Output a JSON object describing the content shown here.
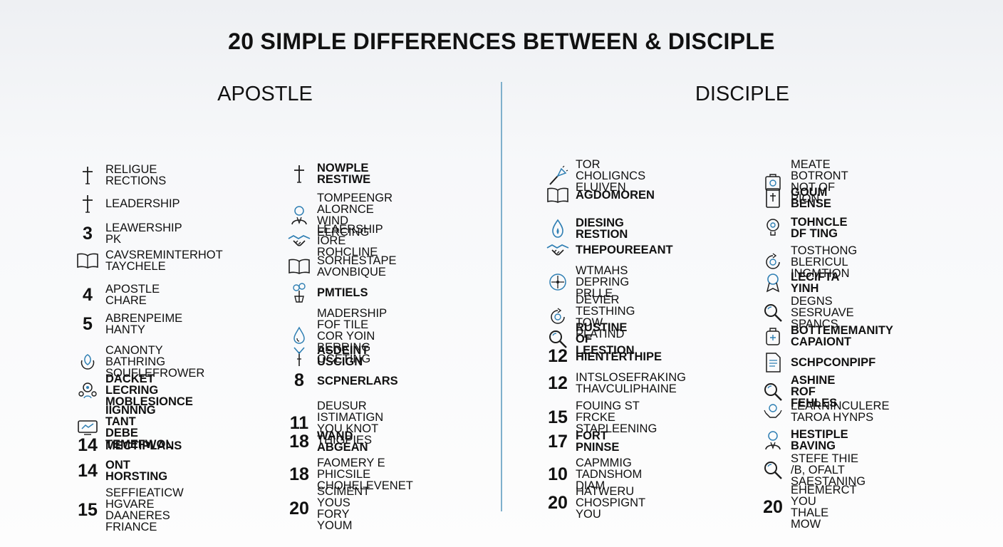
{
  "title": "20 SIMPLE DIFFERENCES BETWEEN & DISCIPLE",
  "apostle": {
    "heading": "APOSTLE",
    "col1": [
      {
        "m": "cross-icon",
        "t": "RELIGUE RECTIONS"
      },
      {
        "m": "cross-icon",
        "t": "LEADERSHIP"
      },
      {
        "m": "3",
        "t": "LEAWERSHIP PK"
      },
      {
        "m": "book-icon",
        "t": "CAVSREMINTERHOT\nTAYCHELE"
      },
      {
        "m": "4",
        "t": "APOSTLE CHARE"
      },
      {
        "m": "5",
        "t": "ABRENPEIME\nHANTY"
      },
      {
        "m": "flower-icon",
        "t": "CANONTY BATHRING\nSOUFLEFROWER"
      },
      {
        "m": "people-icon",
        "t": "DACKET LECRING\nMOBLESIONCE",
        "b": true
      },
      {
        "m": "screen-icon",
        "t": "IIGNNNG TANT\nDEBE TEMEFWOL",
        "b": true
      },
      {
        "m": "14",
        "t": "MECTIPLANS",
        "b": true
      },
      {
        "m": "14",
        "t": "ONT HORSTING",
        "b": true
      },
      {
        "m": "15",
        "t": "SEFFIEATICW HGVARE\nDAANERES FRIANCE"
      }
    ],
    "col2": [
      {
        "m": "cross-icon",
        "t": "NOWPLE RESTIWE",
        "b": true
      },
      {
        "m": "person-icon",
        "t": "TOMPEENGR ALORNCE\nWIND ELRCING"
      },
      {
        "m": "handshake-icon",
        "t": "LEAERSHIP IORE\nROHCLINE"
      },
      {
        "m": "book-icon",
        "t": "SORHESTAPE\nAVONBIQUE"
      },
      {
        "m": "plant-icon",
        "t": "PMTIELS",
        "b": true
      },
      {
        "m": "drop-icon",
        "t": "MADERSHIP FOF TILE\nCOR YOIN BERRING\nOCETING"
      },
      {
        "m": "tool-icon",
        "t": "ASDEINT USCIGN",
        "b": true
      },
      {
        "m": "8",
        "t": "SCPNERLARS",
        "b": true
      },
      {
        "m": "11",
        "t": "DEUSUR ISTIMATIGN\nYOU KNOT THIGPIES"
      },
      {
        "m": "18",
        "t": "WAND ABGEAN",
        "b": true
      },
      {
        "m": "18",
        "t": "FAOMERY E PHICSILE\nCHOHELEVENET"
      },
      {
        "m": "20",
        "t": "SCIMENT YOUS FORY\nYOUM"
      }
    ]
  },
  "disciple": {
    "heading": "DISCIPLE",
    "col1": [
      {
        "m": "torch-icon",
        "t": "TOR CHOLIGNCS\nELUIVEN"
      },
      {
        "m": "book-icon",
        "t": "AGDOMOREN",
        "b": true
      },
      {
        "m": "flame-icon",
        "t": "DIESING RESTION",
        "b": true
      },
      {
        "m": "handshake-icon",
        "t": "THEPOUREEANT",
        "b": true
      },
      {
        "m": "compass-icon",
        "t": "WTMAHS DEPRING\nPRLLE"
      },
      {
        "m": "cycle-icon",
        "t": "DEVIER TESTHING\nTOW PLATIND"
      },
      {
        "m": "magnifier-icon",
        "t": "RUSTINE OF LEESTION",
        "b": true
      },
      {
        "m": "12",
        "t": "HIENTERTHIPE",
        "b": true
      },
      {
        "m": "12",
        "t": "INTSLOSEFRAKING\nTHAVCULIPHAINE"
      },
      {
        "m": "15",
        "t": "FOUING ST FRCKE\nSTAPLEENING"
      },
      {
        "m": "17",
        "t": "FORT PNINSE",
        "b": true
      },
      {
        "m": "10",
        "t": "CAPMMIG TADNSHOM\nDIAM"
      },
      {
        "m": "20",
        "t": "HATWERU CHOSPIGNT\nYOU"
      }
    ],
    "col2": [
      {
        "m": "bag-icon",
        "t": "MEATE BOTRONT\nNOT OF PION"
      },
      {
        "m": "bible-icon",
        "t": "GOUM BENSE",
        "b": true
      },
      {
        "m": "lightbulb-icon",
        "t": "TOHNCLE DF TING",
        "b": true
      },
      {
        "m": "cycle-icon",
        "t": "TOSTHONG BLERICUL\nINGMTION"
      },
      {
        "m": "award-icon",
        "t": "LECIFTA YINH",
        "b": true
      },
      {
        "m": "magnifier-icon",
        "t": "DEGNS SESRUAVE\nSPANCS"
      },
      {
        "m": "jar-icon",
        "t": "BOTTEMEMANITY\nCAPAIONT",
        "b": true
      },
      {
        "m": "document-icon",
        "t": "SCHPCONPIPF",
        "b": true
      },
      {
        "m": "magnifier-icon",
        "t": "ASHINE ROF FEHLES",
        "b": true
      },
      {
        "m": "hands-icon",
        "t": "LEARNINCULERE\nTAROA HYNPS"
      },
      {
        "m": "person-icon",
        "t": "HESTIPLE BAVING",
        "b": true
      },
      {
        "m": "magnifier-icon",
        "t": "STEFE THIE /B, OFALT\nSAESTANING"
      },
      {
        "m": "20",
        "t": "EHEMERCT YOU THALE\nMOW"
      }
    ]
  },
  "colors": {
    "accent": "#2f7fb3",
    "divider": "#7fb0cc",
    "text": "#111111"
  }
}
